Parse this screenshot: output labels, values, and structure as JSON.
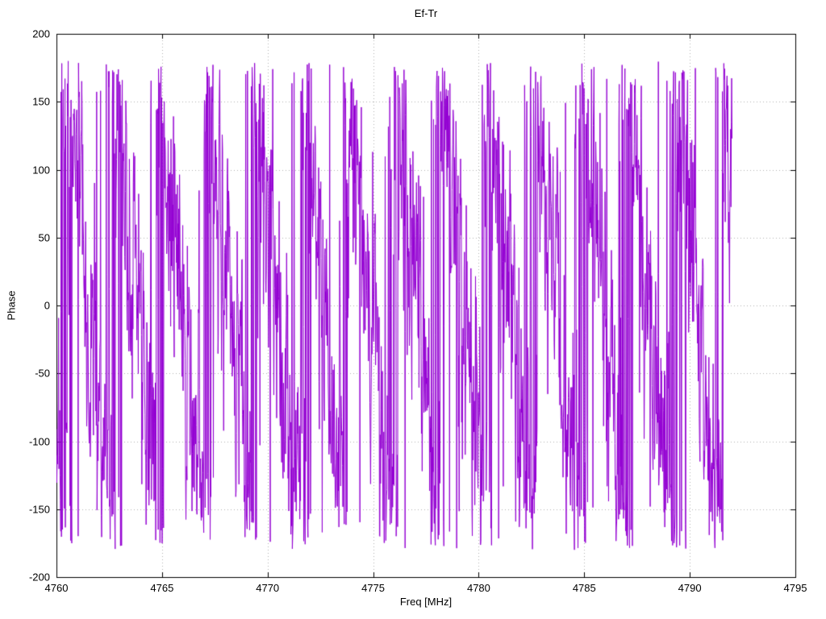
{
  "chart_data": {
    "type": "line",
    "title": "Ef-Tr",
    "xlabel": "Freq [MHz]",
    "ylabel": "Phase",
    "xlim": [
      4760,
      4795
    ],
    "ylim": [
      -200,
      200
    ],
    "xticks": [
      4760,
      4765,
      4770,
      4775,
      4780,
      4785,
      4790,
      4795
    ],
    "yticks": [
      -200,
      -150,
      -100,
      -50,
      0,
      50,
      100,
      150,
      200
    ],
    "grid": true,
    "legend": "none",
    "background_color": "#ffffff",
    "grid_color": "#b0b0b0",
    "border_color": "#000000",
    "series": [
      {
        "name": "Ef-Tr",
        "color": "#9400d3",
        "description": "Wrapped phase response, sawtooth ramps repeating about every 2.2 MHz with heavy noise causing dense vertical wrap spikes; trace spans 4760 to about 4792 MHz",
        "synthesis": {
          "x_start": 4760.0,
          "x_end": 4792.0,
          "n_points": 1900,
          "phase_at_start_deg": -110,
          "slope_deg_per_mhz": -162.5,
          "wrap_low_deg": -180,
          "wrap_high_deg": 180,
          "noise_std_deg": 48,
          "noise_ar_coeff": 0.45,
          "spike_prob": 0.02,
          "spike_std_deg": 120,
          "seed": 20240611
        }
      }
    ]
  }
}
